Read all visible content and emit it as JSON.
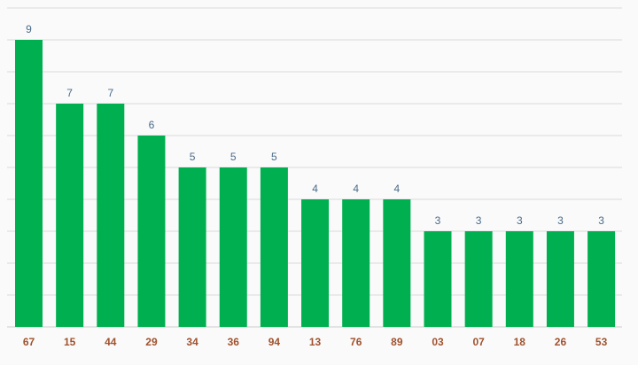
{
  "chart_data": {
    "type": "bar",
    "categories": [
      "67",
      "15",
      "44",
      "29",
      "34",
      "36",
      "94",
      "13",
      "76",
      "89",
      "03",
      "07",
      "18",
      "26",
      "53"
    ],
    "values": [
      9,
      7,
      7,
      6,
      5,
      5,
      5,
      4,
      4,
      4,
      3,
      3,
      3,
      3,
      3
    ],
    "title": "",
    "xlabel": "",
    "ylabel": "",
    "ylim": [
      0,
      10
    ],
    "grid": true,
    "legend": "none",
    "colors": {
      "bar": "#00b050",
      "value_label": "#4a6b8a",
      "category_label": "#a0522d",
      "grid": "#d9d9d9",
      "baseline": "#cccccc",
      "background": "#fafafa"
    }
  }
}
